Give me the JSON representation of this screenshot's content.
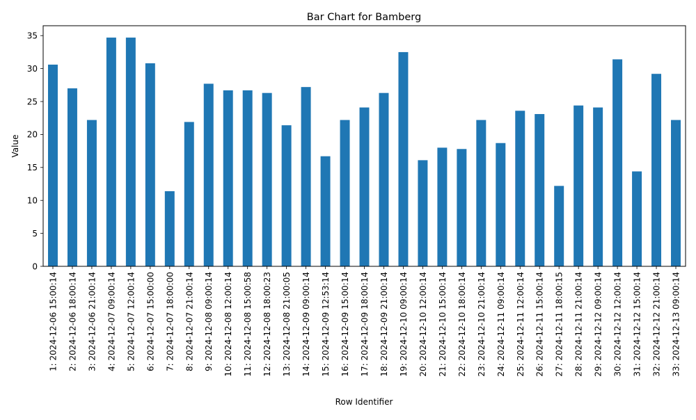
{
  "chart_data": {
    "type": "bar",
    "title": "Bar Chart for Bamberg",
    "xlabel": "Row Identifier",
    "ylabel": "Value",
    "ylim": [
      0,
      36.5
    ],
    "yticks": [
      0,
      5,
      10,
      15,
      20,
      25,
      30,
      35
    ],
    "grid": false,
    "legend": "none",
    "bar_color": "#1f77b4",
    "categories": [
      "1: 2024-12-06 15:00:14",
      "2: 2024-12-06 18:00:14",
      "3: 2024-12-06 21:00:14",
      "4: 2024-12-07 09:00:14",
      "5: 2024-12-07 12:00:14",
      "6: 2024-12-07 15:00:00",
      "7: 2024-12-07 18:00:00",
      "8: 2024-12-07 21:00:14",
      "9: 2024-12-08 09:00:14",
      "10: 2024-12-08 12:00:14",
      "11: 2024-12-08 15:00:58",
      "12: 2024-12-08 18:00:23",
      "13: 2024-12-08 21:00:05",
      "14: 2024-12-09 09:00:14",
      "15: 2024-12-09 12:53:14",
      "16: 2024-12-09 15:00:14",
      "17: 2024-12-09 18:00:14",
      "18: 2024-12-09 21:00:14",
      "19: 2024-12-10 09:00:14",
      "20: 2024-12-10 12:00:14",
      "21: 2024-12-10 15:00:14",
      "22: 2024-12-10 18:00:14",
      "23: 2024-12-10 21:00:14",
      "24: 2024-12-11 09:00:14",
      "25: 2024-12-11 12:00:14",
      "26: 2024-12-11 15:00:14",
      "27: 2024-12-11 18:00:15",
      "28: 2024-12-11 21:00:14",
      "29: 2024-12-12 09:00:14",
      "30: 2024-12-12 12:00:14",
      "31: 2024-12-12 15:00:14",
      "32: 2024-12-12 21:00:14",
      "33: 2024-12-13 09:00:14"
    ],
    "values": [
      30.6,
      27.0,
      22.2,
      34.7,
      34.7,
      30.8,
      11.4,
      21.9,
      27.7,
      26.7,
      26.7,
      26.3,
      21.4,
      27.2,
      16.7,
      22.2,
      24.1,
      26.3,
      32.5,
      16.1,
      18.0,
      17.8,
      22.2,
      18.7,
      23.6,
      23.1,
      12.2,
      24.4,
      24.1,
      31.4,
      14.4,
      29.2,
      22.2
    ]
  }
}
